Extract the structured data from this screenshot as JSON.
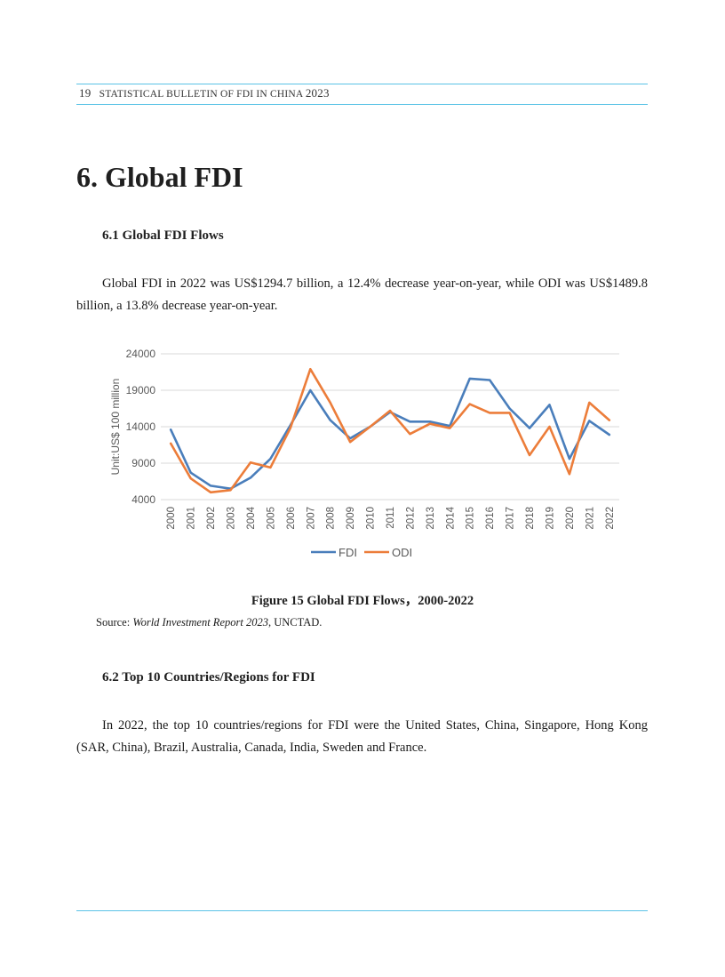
{
  "header": {
    "page_number": "19",
    "publication": "STATISTICAL BULLETIN OF FDI IN CHINA",
    "year": "2023"
  },
  "section": {
    "title": "6. Global FDI",
    "sub1_title": "6.1 Global FDI Flows",
    "sub1_paragraph": "Global FDI in 2022 was US$1294.7 billion, a 12.4% decrease year-on-year, while ODI was US$1489.8 billion, a 13.8% decrease year-on-year.",
    "sub2_title": "6.2 Top 10 Countries/Regions for FDI",
    "sub2_paragraph": "In 2022, the top 10 countries/regions for FDI were the United States, China, Singapore, Hong Kong (SAR, China), Brazil, Australia, Canada, India, Sweden and France."
  },
  "figure": {
    "caption": "Figure 15   Global FDI Flows，2000-2022",
    "source_prefix": "Source: ",
    "source_title": "World Investment Report 2023",
    "source_suffix": ", UNCTAD."
  },
  "chart_data": {
    "type": "line",
    "ylabel": "Unit:US$ 100 million",
    "ylim": [
      4000,
      24000
    ],
    "yticks": [
      4000,
      9000,
      14000,
      19000,
      24000
    ],
    "grid": true,
    "legend_position": "bottom",
    "x": [
      "2000",
      "2001",
      "2002",
      "2003",
      "2004",
      "2005",
      "2006",
      "2007",
      "2008",
      "2009",
      "2010",
      "2011",
      "2012",
      "2013",
      "2014",
      "2015",
      "2016",
      "2017",
      "2018",
      "2019",
      "2020",
      "2021",
      "2022"
    ],
    "series": [
      {
        "name": "FDI",
        "color": "#4a7ebb",
        "values": [
          13600,
          7700,
          5900,
          5500,
          7000,
          9600,
          14200,
          19000,
          14900,
          12400,
          14000,
          16000,
          14700,
          14700,
          14100,
          20600,
          20400,
          16500,
          13800,
          17000,
          9600,
          14800,
          12900
        ]
      },
      {
        "name": "ODI",
        "color": "#ec7d3a",
        "values": [
          11700,
          6900,
          5000,
          5300,
          9100,
          8400,
          13800,
          21900,
          17300,
          11900,
          14000,
          16200,
          13000,
          14400,
          13800,
          17100,
          15900,
          15900,
          10100,
          14000,
          7500,
          17300,
          14900
        ]
      }
    ]
  }
}
